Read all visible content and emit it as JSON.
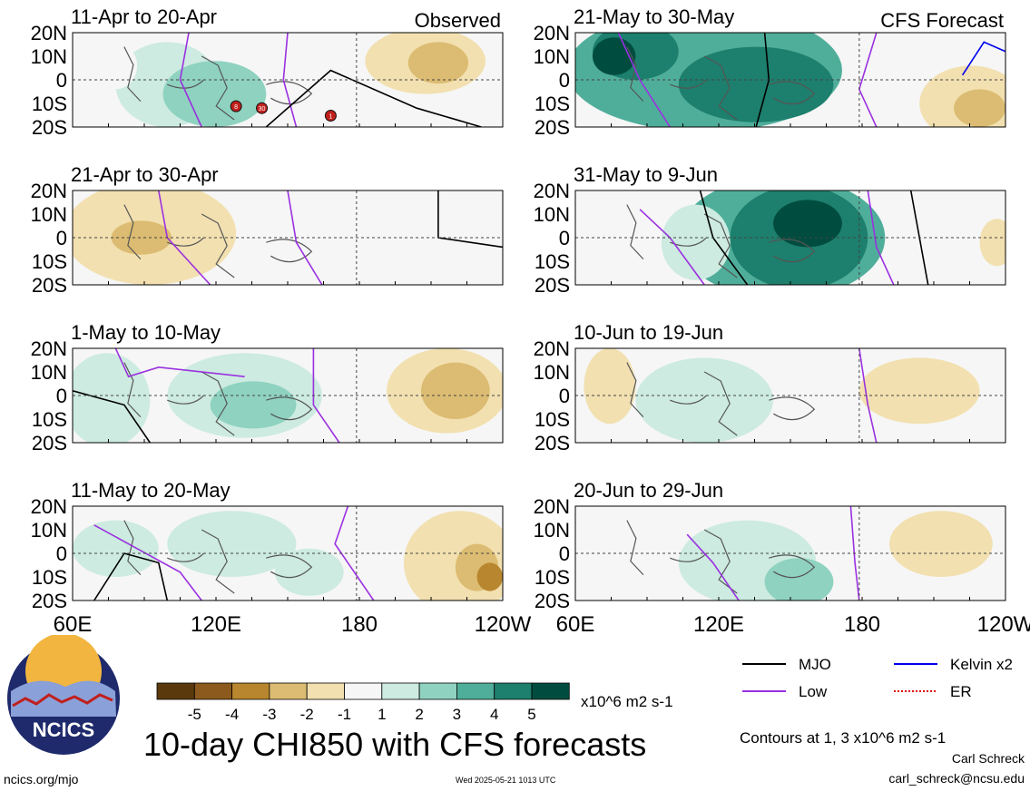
{
  "chart_data": {
    "type": "heatmap",
    "variable": "CHI850",
    "title": "10-day CHI850 with CFS forecasts",
    "units": "x10^6 m2 s-1",
    "lat_ticks": [
      "20N",
      "10N",
      "0",
      "10S",
      "20S"
    ],
    "lon_ticks": [
      "60E",
      "120E",
      "180",
      "120W"
    ],
    "colorbar": {
      "labels": [
        "-5",
        "-4",
        "-3",
        "-2",
        "-1",
        "1",
        "2",
        "3",
        "4",
        "5"
      ],
      "colors": [
        "#5a3a0c",
        "#8c5a1c",
        "#b8862e",
        "#dcbc72",
        "#f2e0b0",
        "#f6f6f6",
        "#cdebe0",
        "#8fd2c0",
        "#4fae9a",
        "#1d7f6d",
        "#004d40"
      ]
    },
    "contour_legend": [
      {
        "label": "MJO",
        "color": "#000000",
        "style": "solid"
      },
      {
        "label": "Kelvin x2",
        "color": "#0000ee",
        "style": "solid"
      },
      {
        "label": "Low",
        "color": "#9b30e0",
        "style": "solid"
      },
      {
        "label": "ER",
        "color": "#e00000",
        "style": "dotted"
      }
    ],
    "contours_note": "Contours at 1, 3 x10^6 m2 s-1",
    "panels": [
      {
        "label": "11-Apr to 20-Apr",
        "tag": "Observed"
      },
      {
        "label": "21-Apr to 30-Apr",
        "tag": ""
      },
      {
        "label": "1-May to 10-May",
        "tag": ""
      },
      {
        "label": "11-May to 20-May",
        "tag": ""
      },
      {
        "label": "21-May to 30-May",
        "tag": "CFS Forecast"
      },
      {
        "label": "31-May to 9-Jun",
        "tag": ""
      },
      {
        "label": "10-Jun to 19-Jun",
        "tag": ""
      },
      {
        "label": "20-Jun to 29-Jun",
        "tag": ""
      }
    ],
    "storm_markers": [
      "8",
      "30",
      "1"
    ]
  },
  "logo": {
    "text": "NCICS"
  },
  "footer": {
    "site": "ncics.org/mjo",
    "timestamp": "Wed 2025-05-21 1013 UTC",
    "author": "Carl Schreck",
    "email": "carl_schreck@ncsu.edu"
  }
}
